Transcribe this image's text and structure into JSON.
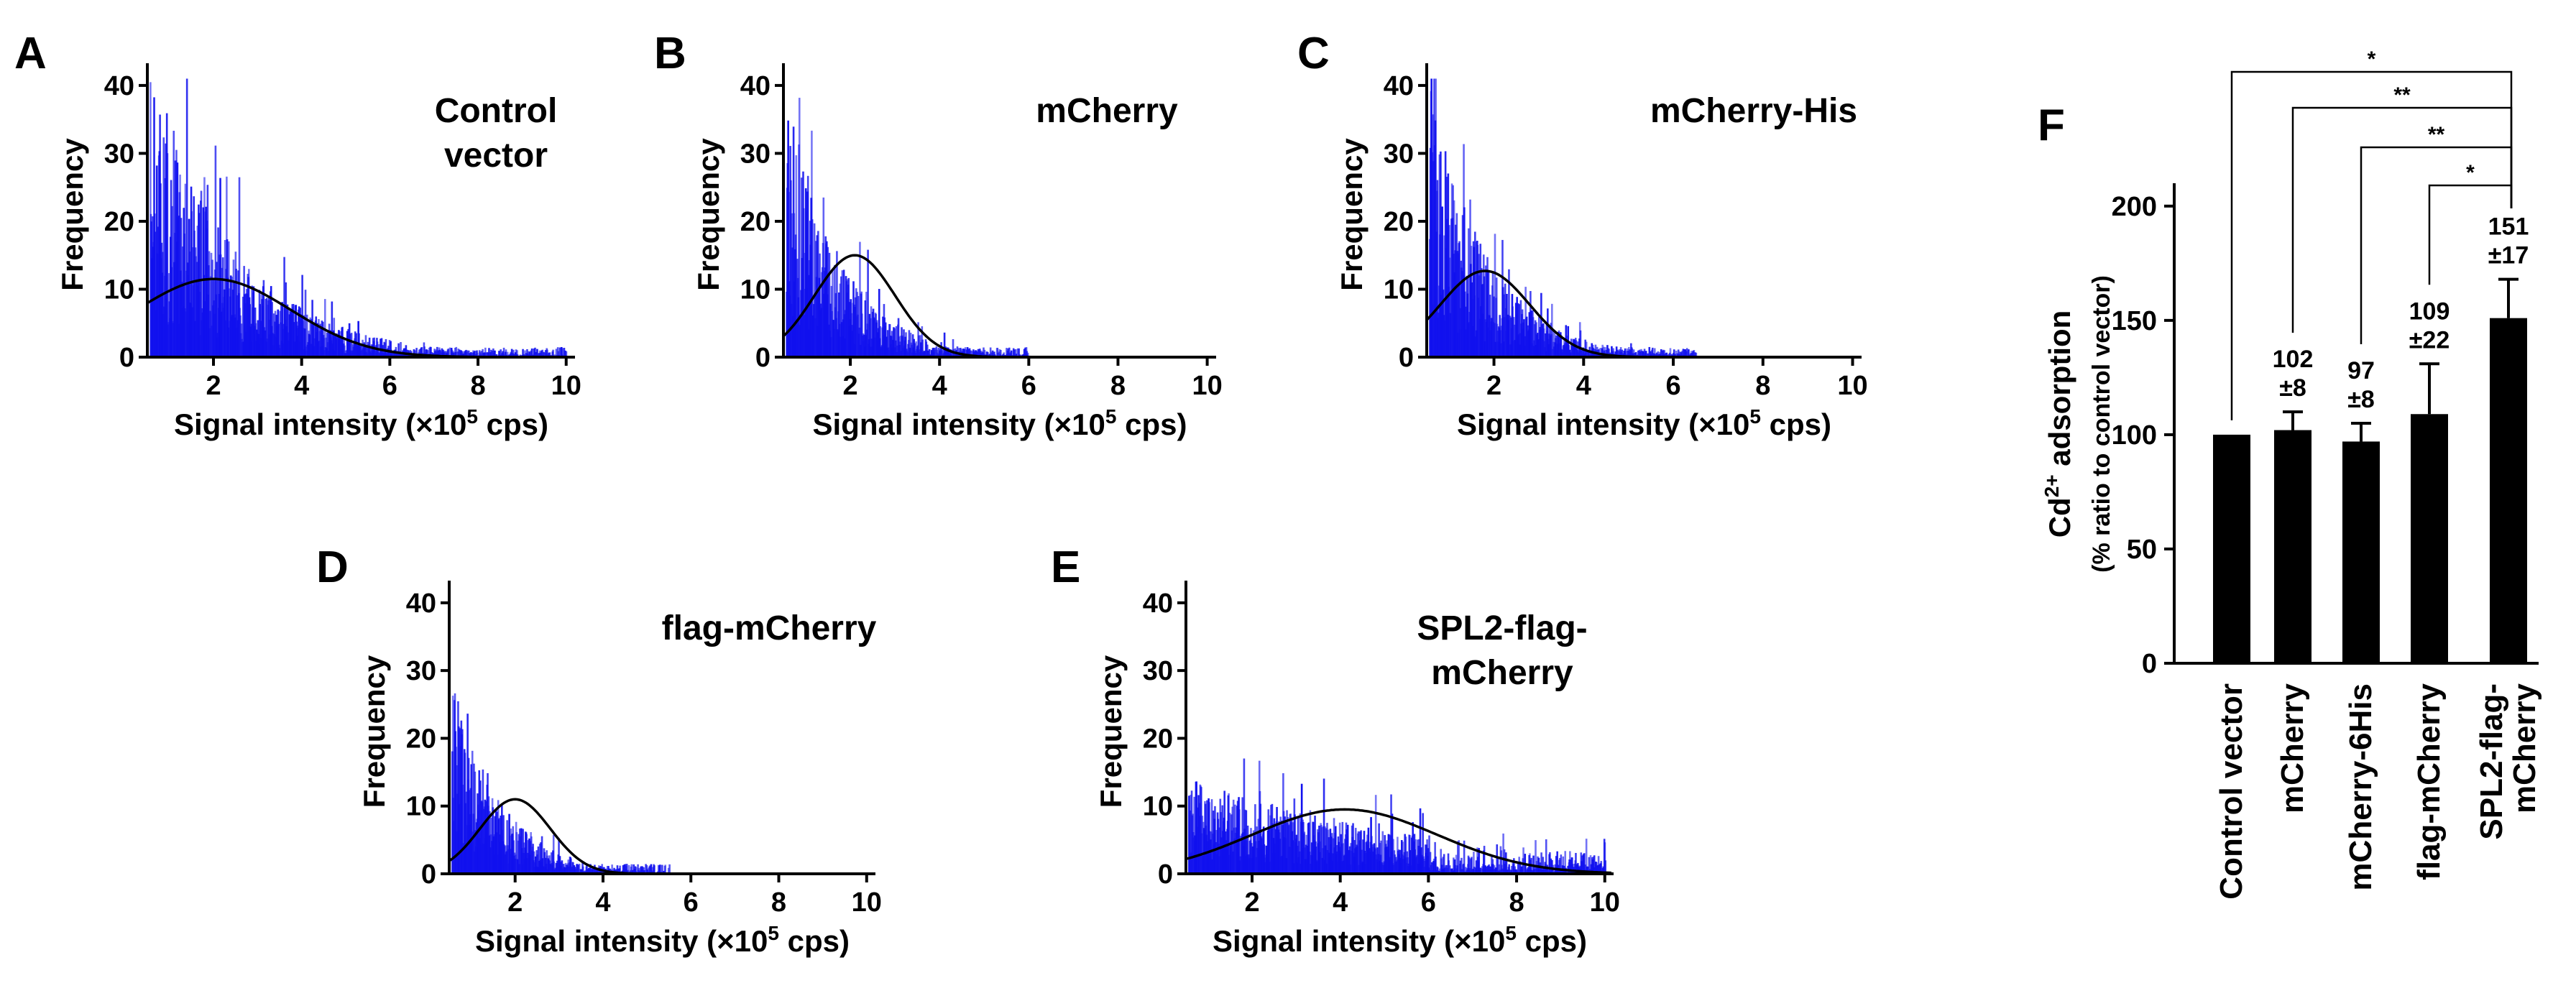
{
  "chart_data": [
    {
      "type": "bar",
      "subtype": "histogram",
      "panel": "A",
      "condition": [
        "Control",
        "vector"
      ],
      "xlabel_prefix": "Signal intensity (×10",
      "xlabel_sup": "5",
      "xlabel_suffix": " cps)",
      "ylabel": "Frequency",
      "xlim": [
        0.5,
        10.2
      ],
      "ylim": [
        0,
        42
      ],
      "xticks": [
        "2",
        "4",
        "6",
        "8",
        "10"
      ],
      "yticks": [
        "0",
        "10",
        "20",
        "30",
        "40"
      ],
      "fit": {
        "mean": 2.0,
        "sd": 1.75,
        "peak": 11.5
      },
      "noise": {
        "peak": 40,
        "decay": 1.9,
        "spread": 1.0,
        "extent": 10.0
      }
    },
    {
      "type": "bar",
      "subtype": "histogram",
      "panel": "B",
      "condition": [
        "mCherry"
      ],
      "xlabel_prefix": "Signal intensity (×10",
      "xlabel_sup": "5",
      "xlabel_suffix": " cps)",
      "ylabel": "Frequency",
      "xlim": [
        0.5,
        10.2
      ],
      "ylim": [
        0,
        42
      ],
      "xticks": [
        "2",
        "4",
        "6",
        "8",
        "10"
      ],
      "yticks": [
        "0",
        "10",
        "20",
        "30",
        "40"
      ],
      "fit": {
        "mean": 2.1,
        "sd": 0.9,
        "peak": 15.0
      },
      "noise": {
        "peak": 40,
        "decay": 1.2,
        "spread": 0.9,
        "extent": 6.0
      }
    },
    {
      "type": "bar",
      "subtype": "histogram",
      "panel": "C",
      "condition": [
        "mCherry-His"
      ],
      "xlabel_prefix": "Signal intensity (×10",
      "xlabel_sup": "5",
      "xlabel_suffix": " cps)",
      "ylabel": "Frequency",
      "xlim": [
        0.5,
        10.2
      ],
      "ylim": [
        0,
        42
      ],
      "xticks": [
        "2",
        "4",
        "6",
        "8",
        "10"
      ],
      "yticks": [
        "0",
        "10",
        "20",
        "30",
        "40"
      ],
      "fit": {
        "mean": 1.8,
        "sd": 1.0,
        "peak": 12.7
      },
      "noise": {
        "peak": 40,
        "decay": 1.3,
        "spread": 0.9,
        "extent": 6.5
      }
    },
    {
      "type": "bar",
      "subtype": "histogram",
      "panel": "D",
      "condition": [
        "flag-mCherry"
      ],
      "xlabel_prefix": "Signal intensity (×10",
      "xlabel_sup": "5",
      "xlabel_suffix": " cps)",
      "ylabel": "Frequency",
      "xlim": [
        0.5,
        10.2
      ],
      "ylim": [
        0,
        42
      ],
      "xticks": [
        "2",
        "4",
        "6",
        "8",
        "10"
      ],
      "yticks": [
        "0",
        "10",
        "20",
        "30",
        "40"
      ],
      "fit": {
        "mean": 2.0,
        "sd": 0.8,
        "peak": 11.0
      },
      "noise": {
        "peak": 29,
        "decay": 1.1,
        "spread": 0.9,
        "extent": 5.5
      }
    },
    {
      "type": "bar",
      "subtype": "histogram",
      "panel": "E",
      "condition": [
        "SPL2-flag-",
        "mCherry"
      ],
      "xlabel_prefix": "Signal intensity (×10",
      "xlabel_sup": "5",
      "xlabel_suffix": " cps)",
      "ylabel": "Frequency",
      "xlim": [
        0.5,
        10.2
      ],
      "ylim": [
        0,
        42
      ],
      "xticks": [
        "2",
        "4",
        "6",
        "8",
        "10"
      ],
      "yticks": [
        "0",
        "10",
        "20",
        "30",
        "40"
      ],
      "fit": {
        "mean": 4.1,
        "sd": 2.1,
        "peak": 9.5
      },
      "noise": {
        "peak": 15,
        "decay": 6.0,
        "spread": 0.8,
        "extent": 10.0
      }
    },
    {
      "type": "bar",
      "panel": "F",
      "categories": [
        "Control vector",
        "mCherry",
        "mCherry-6His",
        "flag-mCherry",
        "SPL2-flag-mCherry"
      ],
      "category_lines": [
        [
          "Control vector"
        ],
        [
          "mCherry"
        ],
        [
          "mCherry-6His"
        ],
        [
          "flag-mCherry"
        ],
        [
          "SPL2-flag-",
          "mCherry"
        ]
      ],
      "values": [
        100,
        102,
        97,
        109,
        151
      ],
      "errors": [
        0,
        8,
        8,
        22,
        17
      ],
      "value_labels": [
        null,
        [
          "102",
          "±8"
        ],
        [
          "97",
          "±8"
        ],
        [
          "109",
          "±22"
        ],
        [
          "151",
          "±17"
        ]
      ],
      "ylabel_prefix": "Cd",
      "ylabel_sup": "2+",
      "ylabel_suffix": " adsorption",
      "ylabel_sub": "(% ratio to control vector)",
      "ylim": [
        0,
        210
      ],
      "yticks": [
        "0",
        "50",
        "100",
        "150",
        "200"
      ],
      "significance": [
        {
          "from": 0,
          "to": 4,
          "label": "*"
        },
        {
          "from": 1,
          "to": 4,
          "label": "**"
        },
        {
          "from": 2,
          "to": 4,
          "label": "**"
        },
        {
          "from": 3,
          "to": 4,
          "label": "*"
        }
      ],
      "colors": {
        "bar": "#000000"
      }
    }
  ],
  "colors": {
    "histogram": "#1111ee",
    "fit": "#000000",
    "axis": "#000000"
  }
}
